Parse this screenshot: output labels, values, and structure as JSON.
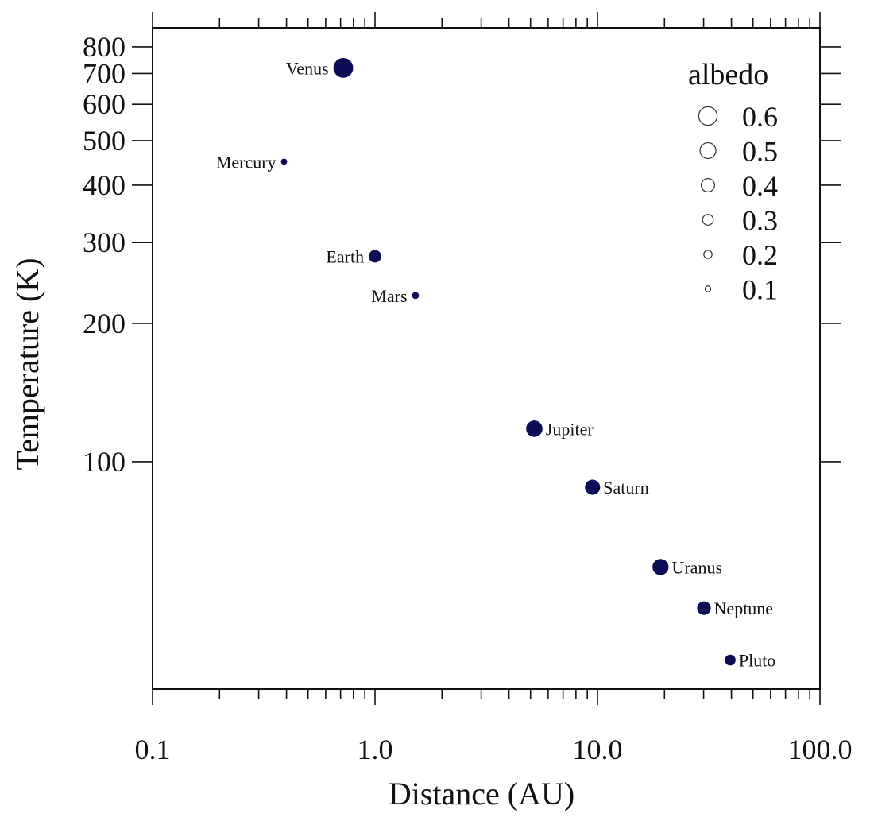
{
  "chart_data": {
    "type": "scatter",
    "xlabel": "Distance (AU)",
    "ylabel": "Temperature (K)",
    "x_scale": "log",
    "y_scale": "log",
    "xlim": [
      0.1,
      100.0
    ],
    "ylim": [
      32,
      880
    ],
    "x_ticks": [
      {
        "value": 0.1,
        "label": "0.1"
      },
      {
        "value": 1.0,
        "label": "1.0"
      },
      {
        "value": 10.0,
        "label": "10.0"
      },
      {
        "value": 100.0,
        "label": "100.0"
      }
    ],
    "y_ticks": [
      {
        "value": 100,
        "label": "100"
      },
      {
        "value": 200,
        "label": "200"
      },
      {
        "value": 300,
        "label": "300"
      },
      {
        "value": 400,
        "label": "400"
      },
      {
        "value": 500,
        "label": "500"
      },
      {
        "value": 600,
        "label": "600"
      },
      {
        "value": 700,
        "label": "700"
      },
      {
        "value": 800,
        "label": "800"
      }
    ],
    "point_color": "#0d0d55",
    "points": [
      {
        "name": "Venus",
        "x": 0.72,
        "y": 720,
        "albedo": 0.65
      },
      {
        "name": "Mercury",
        "x": 0.39,
        "y": 450,
        "albedo": 0.12
      },
      {
        "name": "Earth",
        "x": 1.0,
        "y": 280,
        "albedo": 0.37
      },
      {
        "name": "Mars",
        "x": 1.52,
        "y": 230,
        "albedo": 0.15
      },
      {
        "name": "Jupiter",
        "x": 5.2,
        "y": 118,
        "albedo": 0.52
      },
      {
        "name": "Saturn",
        "x": 9.5,
        "y": 88,
        "albedo": 0.47
      },
      {
        "name": "Uranus",
        "x": 19.2,
        "y": 59,
        "albedo": 0.51
      },
      {
        "name": "Neptune",
        "x": 30.1,
        "y": 48,
        "albedo": 0.41
      },
      {
        "name": "Pluto",
        "x": 39.5,
        "y": 37,
        "albedo": 0.3
      }
    ],
    "legend": {
      "title": "albedo",
      "placement": "top-right",
      "entries": [
        {
          "label": "0.6",
          "albedo": 0.6
        },
        {
          "label": "0.5",
          "albedo": 0.5
        },
        {
          "label": "0.4",
          "albedo": 0.4
        },
        {
          "label": "0.3",
          "albedo": 0.3
        },
        {
          "label": "0.2",
          "albedo": 0.2
        },
        {
          "label": "0.1",
          "albedo": 0.1
        }
      ]
    },
    "grid": false
  }
}
